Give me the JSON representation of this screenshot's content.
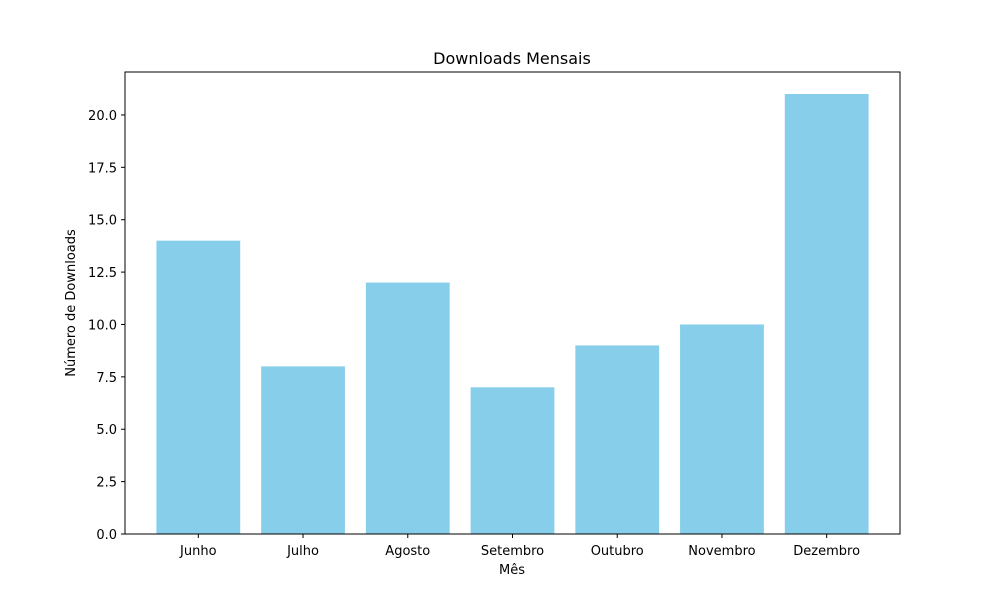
{
  "chart_data": {
    "type": "bar",
    "title": "Downloads Mensais",
    "xlabel": "Mês",
    "ylabel": "Número de Downloads",
    "categories": [
      "Junho",
      "Julho",
      "Agosto",
      "Setembro",
      "Outubro",
      "Novembro",
      "Dezembro"
    ],
    "values": [
      14,
      8,
      12,
      7,
      9,
      10,
      21
    ],
    "ylim": [
      0,
      22.05
    ],
    "yticks": [
      "0.0",
      "2.5",
      "5.0",
      "7.5",
      "10.0",
      "12.5",
      "15.0",
      "17.5",
      "20.0"
    ],
    "bar_color": "#87ceeb",
    "grid": false,
    "legend": "none"
  }
}
